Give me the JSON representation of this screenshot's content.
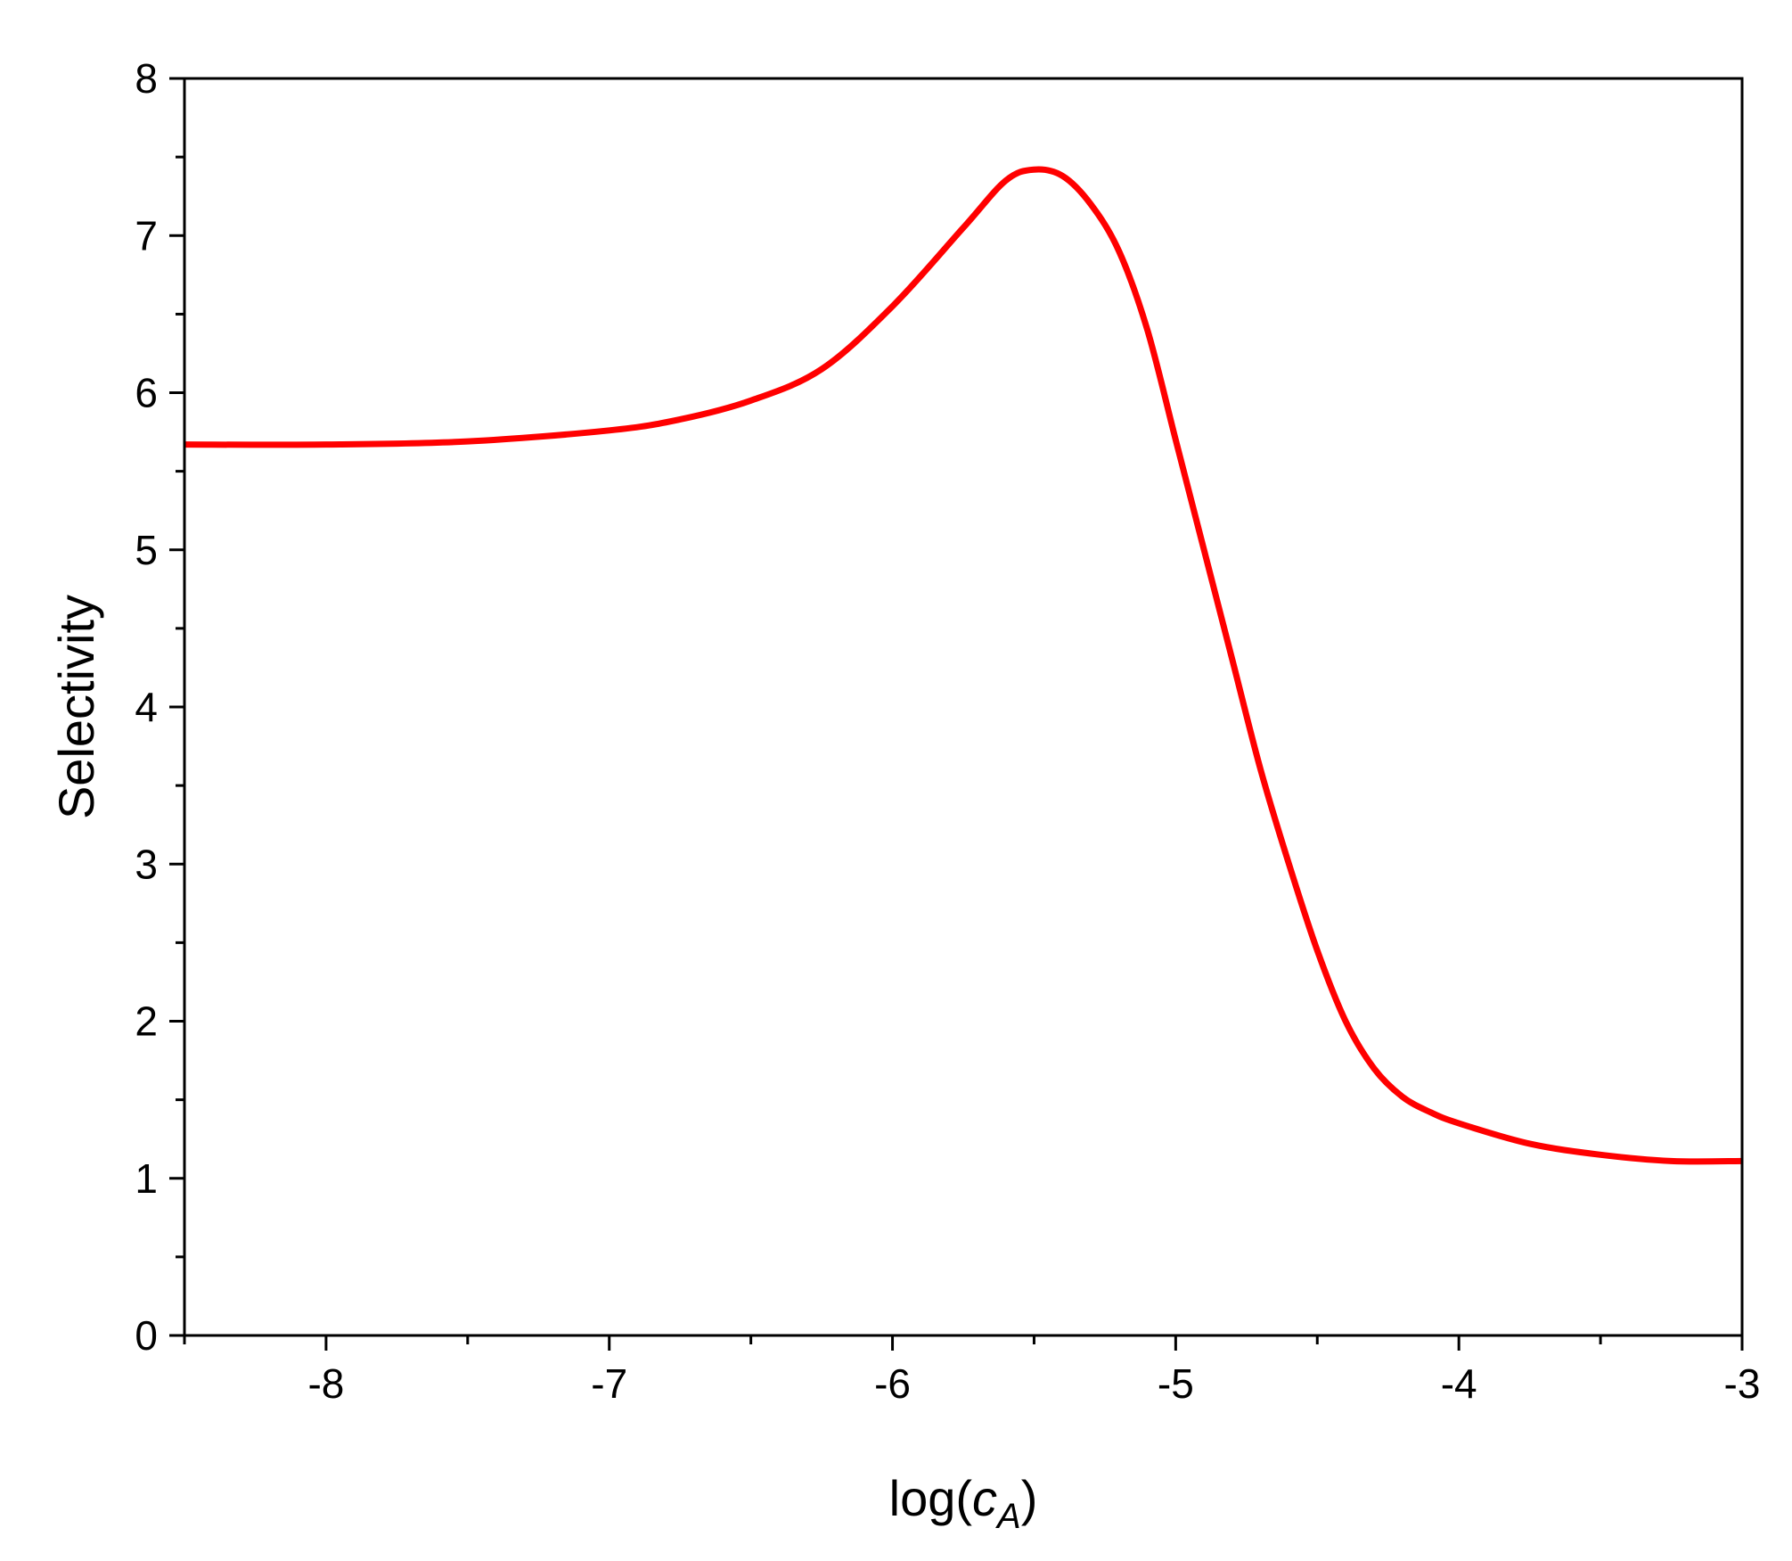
{
  "chart_data": {
    "type": "line",
    "x_label": [
      "log(",
      "c",
      "A",
      ")"
    ],
    "y_label": "Selectivity",
    "xlim": [
      -8.5,
      -3
    ],
    "ylim": [
      0,
      8
    ],
    "xticks": [
      -8,
      -7,
      -6,
      -5,
      -4,
      -3
    ],
    "yticks": [
      0,
      1,
      2,
      3,
      4,
      5,
      6,
      7,
      8
    ],
    "xticks_minor": [
      -8.5,
      -7.5,
      -6.5,
      -5.5,
      -4.5,
      -3.5
    ],
    "yticks_minor": [
      0.5,
      1.5,
      2.5,
      3.5,
      4.5,
      5.5,
      6.5,
      7.5
    ],
    "grid": false,
    "series": [
      {
        "name": "Selectivity",
        "color": "#ff0000",
        "x": [
          -8.5,
          -8,
          -7.5,
          -7,
          -6.75,
          -6.5,
          -6.25,
          -6,
          -5.75,
          -5.6,
          -5.5,
          -5.4,
          -5.3,
          -5.2,
          -5.1,
          -5,
          -4.9,
          -4.8,
          -4.7,
          -4.6,
          -4.5,
          -4.4,
          -4.3,
          -4.2,
          -4.1,
          -4,
          -3.75,
          -3.5,
          -3.25,
          -3
        ],
        "values": [
          5.67,
          5.67,
          5.69,
          5.76,
          5.83,
          5.95,
          6.15,
          6.55,
          7.05,
          7.35,
          7.42,
          7.38,
          7.2,
          6.9,
          6.4,
          5.7,
          5.0,
          4.3,
          3.6,
          3.0,
          2.45,
          2.0,
          1.7,
          1.52,
          1.42,
          1.35,
          1.22,
          1.15,
          1.11,
          1.11
        ]
      }
    ]
  }
}
